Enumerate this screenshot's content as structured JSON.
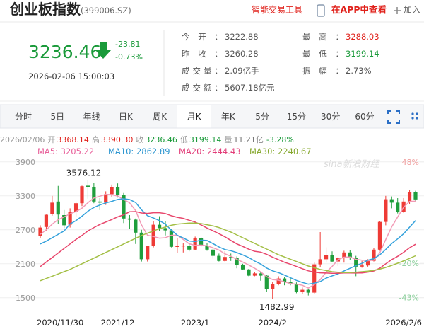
{
  "header": {
    "title": "创业板指数",
    "code": "(399006.SZ)",
    "links": [
      "智能交易工具",
      "在APP中查看",
      "加入"
    ]
  },
  "quote": {
    "price": "3236.46",
    "change": "-23.81",
    "change_pct": "-0.73%",
    "time": "2026-02-06 15:00:03",
    "color": "#1a9a3a"
  },
  "stats": {
    "left": [
      {
        "label": "今开：",
        "value": "3222.88",
        "color": "#555555"
      },
      {
        "label": "昨收：",
        "value": "3260.28",
        "color": "#555555"
      },
      {
        "label": "成交量：",
        "value": "2.09亿手",
        "color": "#555555"
      },
      {
        "label": "成交额：",
        "value": "5607.18亿元",
        "color": "#555555"
      }
    ],
    "right": [
      {
        "label": "最高：",
        "value": "3288.03",
        "color": "#e0211b"
      },
      {
        "label": "最低：",
        "value": "3199.14",
        "color": "#1a9a3a"
      },
      {
        "label": "振幅：",
        "value": "2.73%",
        "color": "#555555"
      }
    ]
  },
  "tabs": {
    "items": [
      "分时",
      "5日",
      "年线",
      "日K",
      "周K",
      "月K",
      "年K",
      "5分",
      "15分",
      "30分",
      "60分"
    ],
    "active": 5
  },
  "info_bar": {
    "date": "2026/02/06",
    "items": [
      {
        "label": "开",
        "value": "3368.14",
        "color": "#e0211b"
      },
      {
        "label": "高",
        "value": "3390.30",
        "color": "#e0211b"
      },
      {
        "label": "收",
        "value": "3236.46",
        "color": "#1a9a3a"
      },
      {
        "label": "低",
        "value": "3199.14",
        "color": "#1a9a3a"
      },
      {
        "label": "量",
        "value": "11.21亿",
        "color": "#777777"
      },
      {
        "label": "",
        "value": "-3.28%",
        "color": "#1a9a3a"
      }
    ]
  },
  "chart_data": {
    "type": "candlestick",
    "watermark": "sina新浪财经",
    "categories": [
      "2020/11/30",
      null,
      null,
      null,
      null,
      null,
      null,
      null,
      null,
      null,
      null,
      null,
      null,
      "2021/12",
      null,
      null,
      null,
      null,
      null,
      null,
      null,
      null,
      null,
      null,
      null,
      null,
      "2023/1",
      null,
      null,
      null,
      null,
      null,
      null,
      null,
      null,
      null,
      null,
      null,
      null,
      "2024/2",
      null,
      null,
      null,
      null,
      null,
      null,
      null,
      null,
      null,
      null,
      null,
      null,
      null,
      null,
      null,
      null,
      null,
      null,
      null,
      null,
      null,
      null,
      null,
      "2026/2/6"
    ],
    "open": [
      2590,
      2750,
      2980,
      3200,
      2960,
      2790,
      3020,
      3170,
      3480,
      3450,
      3200,
      3180,
      3330,
      3450,
      3320,
      2900,
      2880,
      2650,
      2180,
      2410,
      2790,
      2730,
      2690,
      2400,
      2410,
      2420,
      2350,
      2550,
      2420,
      2350,
      2240,
      2150,
      2220,
      2200,
      2080,
      2000,
      1890,
      1930,
      1890,
      1650,
      1740,
      1840,
      1780,
      1740,
      1600,
      1640,
      1590,
      2090,
      2180,
      2260,
      2140,
      2200,
      2300,
      2200,
      2050,
      2070,
      2150,
      2350,
      2840,
      3240,
      3180,
      3020,
      3200,
      3368.14
    ],
    "high": [
      2780,
      2970,
      3300,
      3476,
      3050,
      3080,
      3200,
      3480,
      3576.12,
      3530,
      3260,
      3380,
      3500,
      3520,
      3350,
      2960,
      2900,
      2700,
      2420,
      2850,
      2940,
      2850,
      2710,
      2550,
      2470,
      2460,
      2580,
      2570,
      2470,
      2400,
      2280,
      2320,
      2280,
      2230,
      2100,
      2010,
      1960,
      1960,
      1900,
      1780,
      1880,
      1860,
      1860,
      1770,
      1680,
      1660,
      2120,
      2660,
      2390,
      2320,
      2220,
      2330,
      2340,
      2240,
      2150,
      2180,
      2380,
      2850,
      3300,
      3290,
      3260,
      3260,
      3400,
      3390.3
    ],
    "low": [
      2550,
      2680,
      2950,
      2800,
      2730,
      2740,
      2930,
      3120,
      3250,
      3170,
      3050,
      3140,
      3280,
      3270,
      2820,
      2710,
      2450,
      2140,
      2140,
      2390,
      2680,
      2600,
      2390,
      2290,
      2300,
      2320,
      2340,
      2400,
      2330,
      2190,
      2140,
      2140,
      2150,
      2020,
      1990,
      1880,
      1880,
      1800,
      1600,
      1482.99,
      1720,
      1720,
      1720,
      1580,
      1570,
      1540,
      1570,
      2040,
      2120,
      2130,
      2060,
      2120,
      2170,
      1880,
      2030,
      2050,
      2140,
      2330,
      2780,
      3080,
      2990,
      3000,
      3150,
      3199.14
    ],
    "close": [
      2740,
      2966,
      3180,
      2970,
      2780,
      3020,
      3170,
      3470,
      3450,
      3200,
      3180,
      3330,
      3450,
      3320,
      2900,
      2880,
      2650,
      2180,
      2410,
      2790,
      2730,
      2690,
      2400,
      2410,
      2420,
      2350,
      2550,
      2420,
      2350,
      2240,
      2150,
      2220,
      2200,
      2080,
      2000,
      1890,
      1930,
      1890,
      1650,
      1740,
      1840,
      1780,
      1740,
      1600,
      1640,
      1590,
      2090,
      2180,
      2260,
      2140,
      2200,
      2300,
      2200,
      2050,
      2070,
      2150,
      2350,
      2840,
      3240,
      3180,
      3020,
      3200,
      3368.14,
      3236.46
    ],
    "up_color": "#ee3b36",
    "down_color": "#1f9e3c",
    "series": [
      {
        "name": "MA5: 3205.22",
        "color": "#f29bb6",
        "label_color": "#e8609a",
        "values": [
          2620,
          2700,
          2800,
          2880,
          2927,
          2983,
          3024,
          3082,
          3178,
          3262,
          3294,
          3326,
          3322,
          3296,
          3236,
          3176,
          3040,
          2786,
          2604,
          2582,
          2552,
          2560,
          2604,
          2604,
          2530,
          2454,
          2426,
          2430,
          2418,
          2382,
          2342,
          2276,
          2232,
          2178,
          2130,
          2078,
          2020,
          1958,
          1872,
          1820,
          1810,
          1780,
          1750,
          1740,
          1720,
          1670,
          1732,
          1820,
          1952,
          2052,
          2174,
          2216,
          2220,
          2178,
          2164,
          2154,
          2164,
          2292,
          2530,
          2752,
          2926,
          3096,
          3202,
          3205.22
        ]
      },
      {
        "name": "MA10: 2862.89",
        "color": "#35a2dc",
        "label_color": "#2b95d0",
        "values": [
          2450,
          2500,
          2560,
          2620,
          2680,
          2802,
          2862,
          2941,
          3029,
          3095,
          3139,
          3175,
          3202,
          3237,
          3249,
          3235,
          3183,
          3054,
          2950,
          2909,
          2864,
          2800,
          2695,
          2604,
          2556,
          2503,
          2493,
          2517,
          2511,
          2456,
          2398,
          2351,
          2331,
          2298,
          2256,
          2210,
          2148,
          2095,
          2025,
          1975,
          1944,
          1900,
          1854,
          1806,
          1770,
          1740,
          1756,
          1785,
          1846,
          1886,
          1922,
          1974,
          2020,
          2065,
          2108,
          2164,
          2190,
          2256,
          2354,
          2458,
          2540,
          2630,
          2747,
          2862.89
        ]
      },
      {
        "name": "MA20: 2444.43",
        "color": "#e8466c",
        "label_color": "#e23c78",
        "values": [
          2050,
          2130,
          2210,
          2290,
          2370,
          2450,
          2530,
          2600,
          2680,
          2740,
          2795,
          2838,
          2881,
          2929,
          2965,
          3019,
          3023,
          2998,
          2990,
          3002,
          3002,
          2988,
          2949,
          2921,
          2903,
          2869,
          2838,
          2786,
          2731,
          2683,
          2631,
          2576,
          2513,
          2451,
          2406,
          2357,
          2321,
          2306,
          2268,
          2216,
          2171,
          2126,
          2093,
          2052,
          2013,
          1975,
          1952,
          1940,
          1936,
          1931,
          1933,
          1937,
          1937,
          1936,
          1939,
          1952,
          1973,
          2021,
          2100,
          2172,
          2231,
          2302,
          2384,
          2444.43
        ]
      },
      {
        "name": "MA30: 2240.67",
        "color": "#a3bf45",
        "label_color": "#86a82e",
        "values": [
          1800,
          1840,
          1880,
          1920,
          1960,
          2000,
          2050,
          2100,
          2150,
          2200,
          2250,
          2300,
          2350,
          2400,
          2450,
          2500,
          2550,
          2600,
          2640,
          2680,
          2720,
          2750,
          2780,
          2800,
          2810,
          2820,
          2820,
          2810,
          2790,
          2770,
          2740,
          2700,
          2660,
          2610,
          2560,
          2510,
          2460,
          2410,
          2360,
          2310,
          2260,
          2220,
          2180,
          2140,
          2100,
          2060,
          2030,
          2000,
          1980,
          1960,
          1950,
          1945,
          1945,
          1950,
          1960,
          1970,
          1985,
          2005,
          2035,
          2070,
          2110,
          2150,
          2195,
          2240.67
        ]
      }
    ],
    "ylim": [
      1260,
      4010
    ],
    "yticks": [
      1500,
      2100,
      2700,
      3300,
      3900
    ],
    "y2lim": [
      -52.2,
      52.2
    ],
    "y2ticks": [
      {
        "value": -43,
        "label": "-43%"
      },
      {
        "value": -20,
        "label": "-20%"
      },
      {
        "value": 48,
        "label": "48%"
      }
    ],
    "grid": true
  }
}
